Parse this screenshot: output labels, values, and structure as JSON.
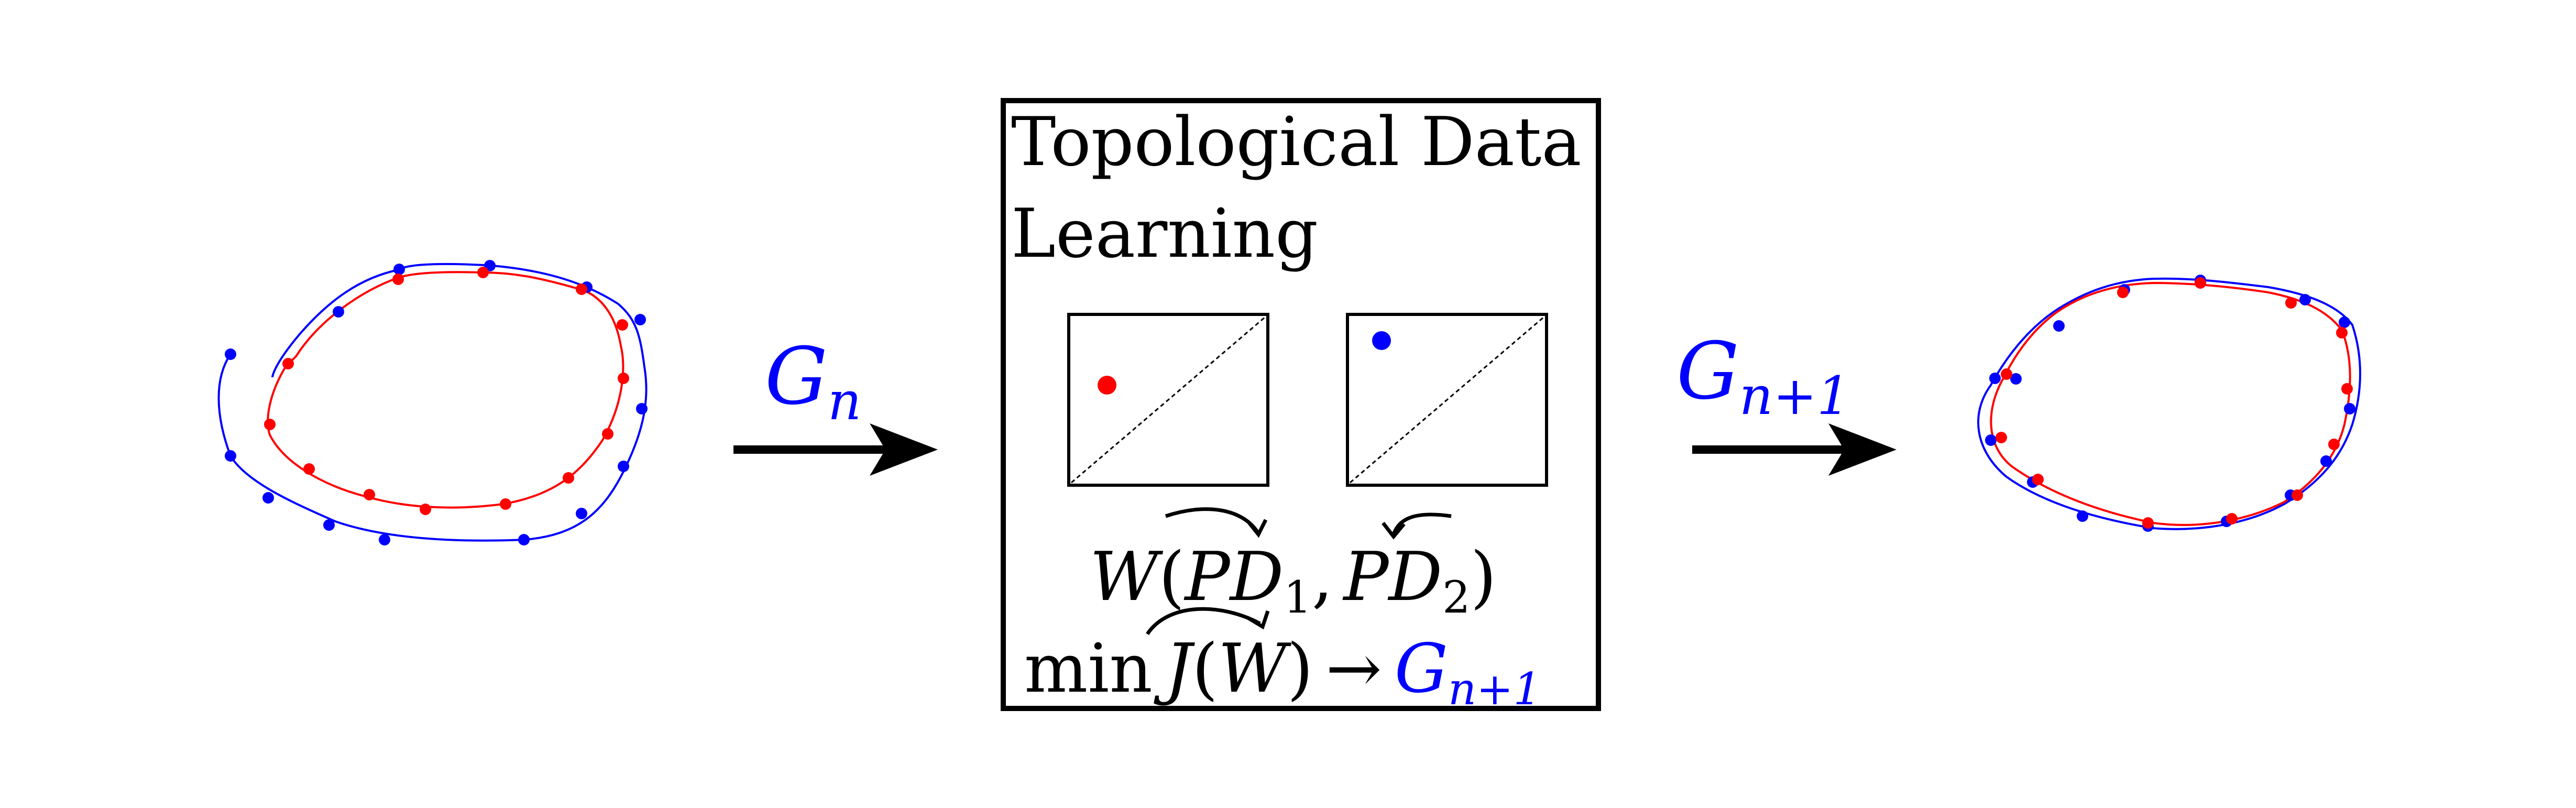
{
  "box": {
    "title_line1": "Topological Data",
    "title_line2": "Learning"
  },
  "arrows": {
    "left_label_main": "G",
    "left_label_sub": "n",
    "right_label_main": "G",
    "right_label_sub": "n+1"
  },
  "formulas": {
    "wasserstein": {
      "W": "W",
      "open": "(",
      "pd1_main": "PD",
      "pd1_sub": "1",
      "comma": ",",
      "pd2_main": "PD",
      "pd2_sub": "2",
      "close": ")"
    },
    "objective": {
      "min": "min",
      "J": "J",
      "open": "(",
      "W": "W",
      "close": ")",
      "arrow": "→",
      "target_main": "G",
      "target_sub": "n+1"
    }
  },
  "colors": {
    "red": "#ff0000",
    "blue": "#0000ff",
    "black": "#000000"
  }
}
